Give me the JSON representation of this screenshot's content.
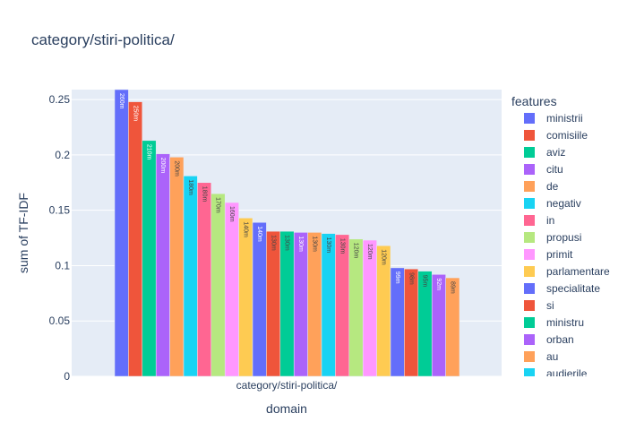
{
  "chart_data": {
    "type": "bar",
    "title": "category/stiri-politica/",
    "xlabel": "domain",
    "ylabel": "sum of TF-IDF",
    "categories": [
      "category/stiri-politica/"
    ],
    "ylim": [
      0,
      0.259
    ],
    "yticks": [
      0,
      0.05,
      0.1,
      0.15,
      0.2,
      0.25
    ],
    "ytick_labels": [
      "0",
      "0.05",
      "0.1",
      "0.15",
      "0.2",
      "0.25"
    ],
    "grid": true,
    "legend_title": "features",
    "legend_position": "right",
    "series": [
      {
        "name": "ministrii",
        "values": [
          0.259
        ],
        "label": "260m",
        "color": "#636efa",
        "label_color": "#ffffff"
      },
      {
        "name": "comisiile",
        "values": [
          0.248
        ],
        "label": "250m",
        "color": "#ef553b",
        "label_color": "#ffffff"
      },
      {
        "name": "aviz",
        "values": [
          0.213
        ],
        "label": "210m",
        "color": "#00cc96",
        "label_color": "#ffffff"
      },
      {
        "name": "citu",
        "values": [
          0.201
        ],
        "label": "200m",
        "color": "#ab63fa",
        "label_color": "#ffffff"
      },
      {
        "name": "de",
        "values": [
          0.198
        ],
        "label": "200m",
        "color": "#ffa15a",
        "label_color": "#444444"
      },
      {
        "name": "negativ",
        "values": [
          0.181
        ],
        "label": "180m",
        "color": "#19d3f3",
        "label_color": "#444444"
      },
      {
        "name": "in",
        "values": [
          0.175
        ],
        "label": "180m",
        "color": "#ff6692",
        "label_color": "#444444"
      },
      {
        "name": "propusi",
        "values": [
          0.165
        ],
        "label": "170m",
        "color": "#b6e880",
        "label_color": "#444444"
      },
      {
        "name": "primit",
        "values": [
          0.157
        ],
        "label": "160m",
        "color": "#ff97ff",
        "label_color": "#444444"
      },
      {
        "name": "parlamentare",
        "values": [
          0.143
        ],
        "label": "140m",
        "color": "#fecb52",
        "label_color": "#444444"
      },
      {
        "name": "specialitate",
        "values": [
          0.139
        ],
        "label": "140m",
        "color": "#636efa",
        "label_color": "#ffffff"
      },
      {
        "name": "si",
        "values": [
          0.131
        ],
        "label": "130m",
        "color": "#ef553b",
        "label_color": "#444444"
      },
      {
        "name": "ministru",
        "values": [
          0.131
        ],
        "label": "130m",
        "color": "#00cc96",
        "label_color": "#444444"
      },
      {
        "name": "orban",
        "values": [
          0.13
        ],
        "label": "130m",
        "color": "#ab63fa",
        "label_color": "#ffffff"
      },
      {
        "name": "au",
        "values": [
          0.13
        ],
        "label": "130m",
        "color": "#ffa15a",
        "label_color": "#444444"
      },
      {
        "name": "audierile",
        "values": [
          0.129
        ],
        "label": "130m",
        "color": "#19d3f3",
        "label_color": "#444444"
      },
      {
        "name": "",
        "values": [
          0.128
        ],
        "label": "130m",
        "color": "#ff6692",
        "label_color": "#444444"
      },
      {
        "name": "",
        "values": [
          0.124
        ],
        "label": "120m",
        "color": "#b6e880",
        "label_color": "#444444"
      },
      {
        "name": "",
        "values": [
          0.123
        ],
        "label": "120m",
        "color": "#ff97ff",
        "label_color": "#444444"
      },
      {
        "name": "",
        "values": [
          0.118
        ],
        "label": "120m",
        "color": "#fecb52",
        "label_color": "#444444"
      },
      {
        "name": "",
        "values": [
          0.098
        ],
        "label": "99m",
        "color": "#636efa",
        "label_color": "#ffffff"
      },
      {
        "name": "",
        "values": [
          0.097
        ],
        "label": "98m",
        "color": "#ef553b",
        "label_color": "#444444"
      },
      {
        "name": "",
        "values": [
          0.095
        ],
        "label": "95m",
        "color": "#00cc96",
        "label_color": "#444444"
      },
      {
        "name": "",
        "values": [
          0.092
        ],
        "label": "92m",
        "color": "#ab63fa",
        "label_color": "#ffffff"
      },
      {
        "name": "",
        "values": [
          0.089
        ],
        "label": "89m",
        "color": "#ffa15a",
        "label_color": "#444444"
      }
    ]
  }
}
